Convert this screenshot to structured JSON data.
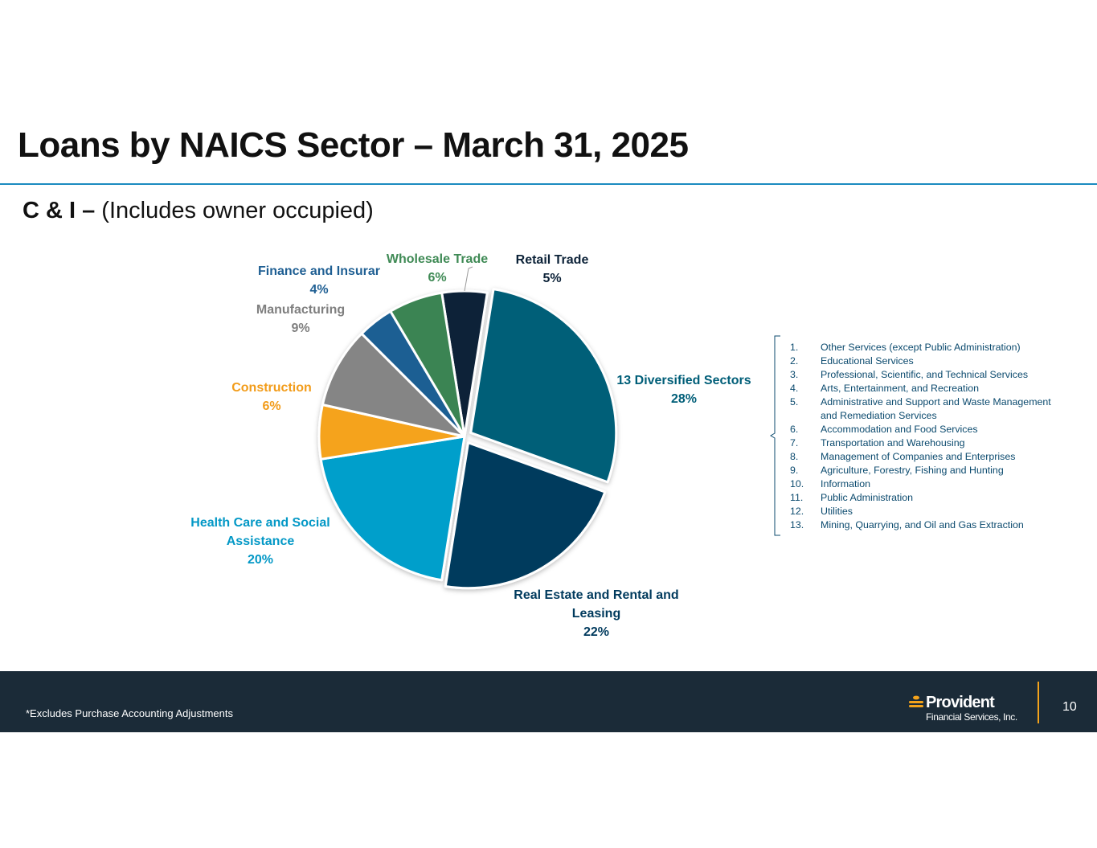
{
  "slide": {
    "title": "Loans by NAICS Sector – March 31, 2025",
    "subtitle_bold": "C & I –",
    "subtitle_rest": " (Includes owner occupied)"
  },
  "chart_data": {
    "type": "pie",
    "title": "",
    "slices": [
      {
        "name": "Retail Trade",
        "value": 5,
        "label": "5%",
        "color": "#0c2238",
        "label_color": "#0c2238"
      },
      {
        "name": "13 Diversified Sectors",
        "value": 28,
        "label": "28%",
        "color": "#005e78",
        "label_color": "#005e78",
        "exploded": true
      },
      {
        "name": "Real Estate and Rental and Leasing",
        "value": 22,
        "label": "22%",
        "color": "#003a5d",
        "label_color": "#003a5d",
        "exploded": true
      },
      {
        "name": "Health Care and Social Assistance",
        "value": 20,
        "label": "20%",
        "color": "#009fcb",
        "label_color": "#0398c6"
      },
      {
        "name": "Construction",
        "value": 6,
        "label": "6%",
        "color": "#f5a31e",
        "label_color": "#f29c1a"
      },
      {
        "name": "Manufacturing",
        "value": 9,
        "label": "9%",
        "color": "#858585",
        "label_color": "#7f7f7f"
      },
      {
        "name": "Finance and Insurar",
        "value": 4,
        "label": "4%",
        "color": "#1f5f93",
        "label_color": "#1f5f93"
      },
      {
        "name": "Wholesale Trade",
        "value": 6,
        "label": "6%",
        "color": "#3a8452",
        "label_color": "#3f8a55"
      }
    ]
  },
  "diversified_sectors": [
    {
      "num": "1.",
      "text": "Other Services (except Public Administration)"
    },
    {
      "num": "2.",
      "text": "Educational Services"
    },
    {
      "num": "3.",
      "text": "Professional, Scientific, and Technical Services"
    },
    {
      "num": "4.",
      "text": "Arts, Entertainment, and Recreation"
    },
    {
      "num": "5.",
      "text": "Administrative and Support and Waste Management and Remediation Services"
    },
    {
      "num": "6.",
      "text": "Accommodation and Food Services"
    },
    {
      "num": "7.",
      "text": "Transportation and Warehousing"
    },
    {
      "num": "8.",
      "text": "Management of Companies and Enterprises"
    },
    {
      "num": "9.",
      "text": "Agriculture, Forestry, Fishing and Hunting"
    },
    {
      "num": "10.",
      "text": "Information"
    },
    {
      "num": "11.",
      "text": "Public Administration"
    },
    {
      "num": "12.",
      "text": "Utilities"
    },
    {
      "num": "13.",
      "text": "Mining, Quarrying, and Oil and Gas Extraction"
    }
  ],
  "footer": {
    "footnote": "*Excludes Purchase Accounting Adjustments",
    "logo_name": "Provident",
    "logo_sub": "Financial Services, Inc.",
    "page_number": "10",
    "accent_color": "#f4a31b",
    "background_color": "#1b2b38"
  }
}
